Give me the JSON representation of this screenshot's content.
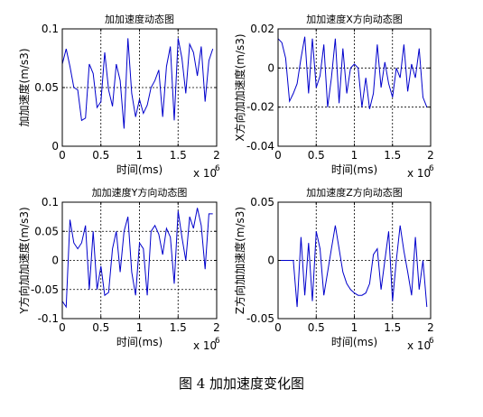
{
  "caption": "图 4 加加速度变化图",
  "chart_data": [
    {
      "type": "line",
      "title": "加加速度动态图",
      "xlabel": "时间(ms)",
      "ylabel": "加加速度(m/s3)",
      "xlim": [
        0,
        2
      ],
      "ylim": [
        0,
        0.1
      ],
      "xticks": [
        "0",
        "0.5",
        "1",
        "1.5",
        "2"
      ],
      "yticks": [
        "0",
        "0.05",
        "0.1"
      ],
      "x_multiplier": "x 10",
      "x_exponent": "6",
      "grid": "dotted",
      "series": [
        {
          "color": "#0000cc",
          "x": [
            0.0,
            0.05,
            0.1,
            0.15,
            0.2,
            0.25,
            0.3,
            0.35,
            0.4,
            0.45,
            0.5,
            0.55,
            0.6,
            0.65,
            0.7,
            0.75,
            0.8,
            0.85,
            0.9,
            0.95,
            1.0,
            1.05,
            1.1,
            1.15,
            1.2,
            1.25,
            1.3,
            1.35,
            1.4,
            1.45,
            1.5,
            1.55,
            1.6,
            1.65,
            1.7,
            1.75,
            1.8,
            1.85,
            1.9,
            1.95
          ],
          "y": [
            0.07,
            0.083,
            0.068,
            0.05,
            0.048,
            0.022,
            0.024,
            0.07,
            0.062,
            0.033,
            0.038,
            0.08,
            0.048,
            0.034,
            0.07,
            0.056,
            0.015,
            0.092,
            0.045,
            0.025,
            0.04,
            0.028,
            0.035,
            0.05,
            0.056,
            0.065,
            0.025,
            0.068,
            0.085,
            0.022,
            0.092,
            0.075,
            0.045,
            0.087,
            0.08,
            0.06,
            0.085,
            0.038,
            0.073,
            0.083
          ]
        }
      ]
    },
    {
      "type": "line",
      "title": "加加速度X方向动态图",
      "xlabel": "时间(ms)",
      "ylabel": "X方向加加速度(m/s3)",
      "xlim": [
        0,
        2
      ],
      "ylim": [
        -0.04,
        0.02
      ],
      "xticks": [
        "0",
        "0.5",
        "1",
        "1.5",
        "2"
      ],
      "yticks": [
        "-0.04",
        "-0.02",
        "0",
        "0.02"
      ],
      "x_multiplier": "x 10",
      "x_exponent": "6",
      "grid": "dotted",
      "series": [
        {
          "color": "#0000cc",
          "x": [
            0.0,
            0.05,
            0.1,
            0.15,
            0.2,
            0.25,
            0.3,
            0.35,
            0.4,
            0.45,
            0.5,
            0.55,
            0.6,
            0.65,
            0.7,
            0.75,
            0.8,
            0.85,
            0.9,
            0.95,
            1.0,
            1.05,
            1.1,
            1.15,
            1.2,
            1.25,
            1.3,
            1.35,
            1.4,
            1.45,
            1.5,
            1.55,
            1.6,
            1.65,
            1.7,
            1.75,
            1.8,
            1.85,
            1.9,
            1.95
          ],
          "y": [
            0.015,
            0.013,
            0.005,
            -0.017,
            -0.013,
            -0.008,
            0.005,
            0.016,
            -0.013,
            0.015,
            -0.01,
            -0.004,
            0.012,
            -0.02,
            -0.005,
            0.015,
            -0.018,
            0.01,
            -0.013,
            0.0,
            0.002,
            0.0,
            -0.02,
            -0.005,
            -0.021,
            -0.013,
            0.012,
            -0.01,
            0.003,
            -0.008,
            -0.015,
            0.0,
            -0.005,
            0.012,
            -0.012,
            0.002,
            -0.005,
            0.01,
            -0.015,
            -0.02
          ]
        }
      ]
    },
    {
      "type": "line",
      "title": "加加速度Y方向动态图",
      "xlabel": "时间(ms)",
      "ylabel": "Y方向加加速度(m/s3)",
      "xlim": [
        0,
        2
      ],
      "ylim": [
        -0.1,
        0.1
      ],
      "xticks": [
        "0",
        "0.5",
        "1",
        "1.5",
        "2"
      ],
      "yticks": [
        "-0.1",
        "-0.05",
        "0",
        "0.05",
        "0.1"
      ],
      "x_multiplier": "x 10",
      "x_exponent": "6",
      "grid": "dotted",
      "series": [
        {
          "color": "#0000cc",
          "x": [
            0.0,
            0.05,
            0.1,
            0.15,
            0.2,
            0.25,
            0.3,
            0.35,
            0.4,
            0.45,
            0.5,
            0.55,
            0.6,
            0.65,
            0.7,
            0.75,
            0.8,
            0.85,
            0.9,
            0.95,
            1.0,
            1.05,
            1.1,
            1.15,
            1.2,
            1.25,
            1.3,
            1.35,
            1.4,
            1.45,
            1.5,
            1.55,
            1.6,
            1.65,
            1.7,
            1.75,
            1.8,
            1.85,
            1.9,
            1.95
          ],
          "y": [
            -0.07,
            -0.08,
            0.07,
            0.03,
            0.02,
            0.03,
            0.06,
            -0.05,
            0.05,
            -0.05,
            -0.01,
            -0.06,
            -0.055,
            0.02,
            0.05,
            -0.02,
            0.05,
            0.075,
            -0.02,
            -0.06,
            0.03,
            0.02,
            -0.06,
            0.05,
            0.06,
            0.045,
            0.01,
            0.055,
            0.04,
            -0.04,
            0.085,
            0.04,
            0.0,
            0.075,
            0.055,
            0.09,
            0.06,
            -0.015,
            0.08,
            0.08
          ]
        }
      ]
    },
    {
      "type": "line",
      "title": "加加速度Z方向动态图",
      "xlabel": "时间(ms)",
      "ylabel": "Z方向加加速度(m/s3)",
      "xlim": [
        0,
        2
      ],
      "ylim": [
        -0.05,
        0.05
      ],
      "xticks": [
        "0",
        "0.5",
        "1",
        "1.5",
        "2"
      ],
      "yticks": [
        "-0.05",
        "0",
        "0.05"
      ],
      "x_multiplier": "x 10",
      "x_exponent": "6",
      "grid": "dotted",
      "series": [
        {
          "color": "#0000cc",
          "x": [
            0.0,
            0.05,
            0.1,
            0.15,
            0.2,
            0.25,
            0.3,
            0.35,
            0.4,
            0.45,
            0.5,
            0.55,
            0.6,
            0.65,
            0.7,
            0.75,
            0.8,
            0.85,
            0.9,
            0.95,
            1.0,
            1.05,
            1.1,
            1.15,
            1.2,
            1.25,
            1.3,
            1.35,
            1.4,
            1.45,
            1.5,
            1.55,
            1.6,
            1.65,
            1.7,
            1.75,
            1.8,
            1.85,
            1.9,
            1.95
          ],
          "y": [
            0.0,
            0.0,
            0.0,
            0.0,
            0.0,
            -0.04,
            0.02,
            -0.03,
            0.015,
            -0.035,
            0.025,
            0.01,
            -0.03,
            -0.01,
            0.01,
            0.03,
            0.01,
            -0.01,
            -0.02,
            -0.025,
            -0.028,
            -0.03,
            -0.03,
            -0.028,
            -0.02,
            0.005,
            0.01,
            -0.025,
            0.0,
            0.025,
            -0.035,
            0.0,
            0.03,
            0.008,
            -0.01,
            -0.03,
            0.02,
            -0.025,
            0.0,
            -0.04
          ]
        }
      ]
    }
  ]
}
